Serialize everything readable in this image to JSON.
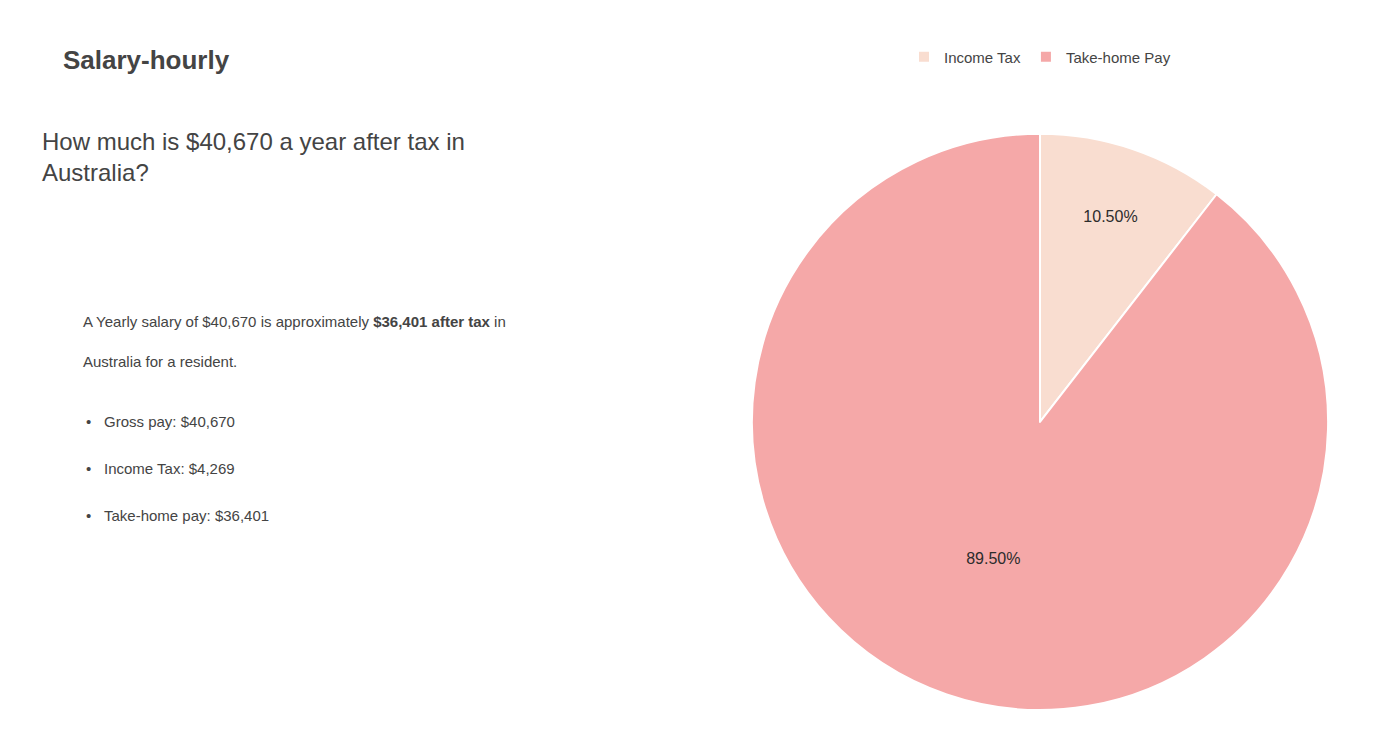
{
  "chart_data": {
    "type": "pie",
    "title": [
      "How much is $40,670 a year after tax in",
      "Australia?"
    ],
    "annotations": [
      "S",
      "alary-hourly",
      "A Yearly salary of $40,670 is approximately ",
      "$36,401 after tax",
      " in",
      "Australia for a resident.",
      "•",
      "Gross pay: $40,670",
      "•",
      "Income Tax: $4,269",
      "•",
      "Take-home pay: $36,401"
    ],
    "categories": [
      "Income Tax",
      "Take-home Pay"
    ],
    "values": [
      10.5,
      89.5
    ],
    "value_labels": [
      "10.50%",
      "89.50%"
    ],
    "data_labels": true,
    "colors": [
      "#f9ddd0",
      "#f5a8a8"
    ],
    "legend": "top"
  }
}
